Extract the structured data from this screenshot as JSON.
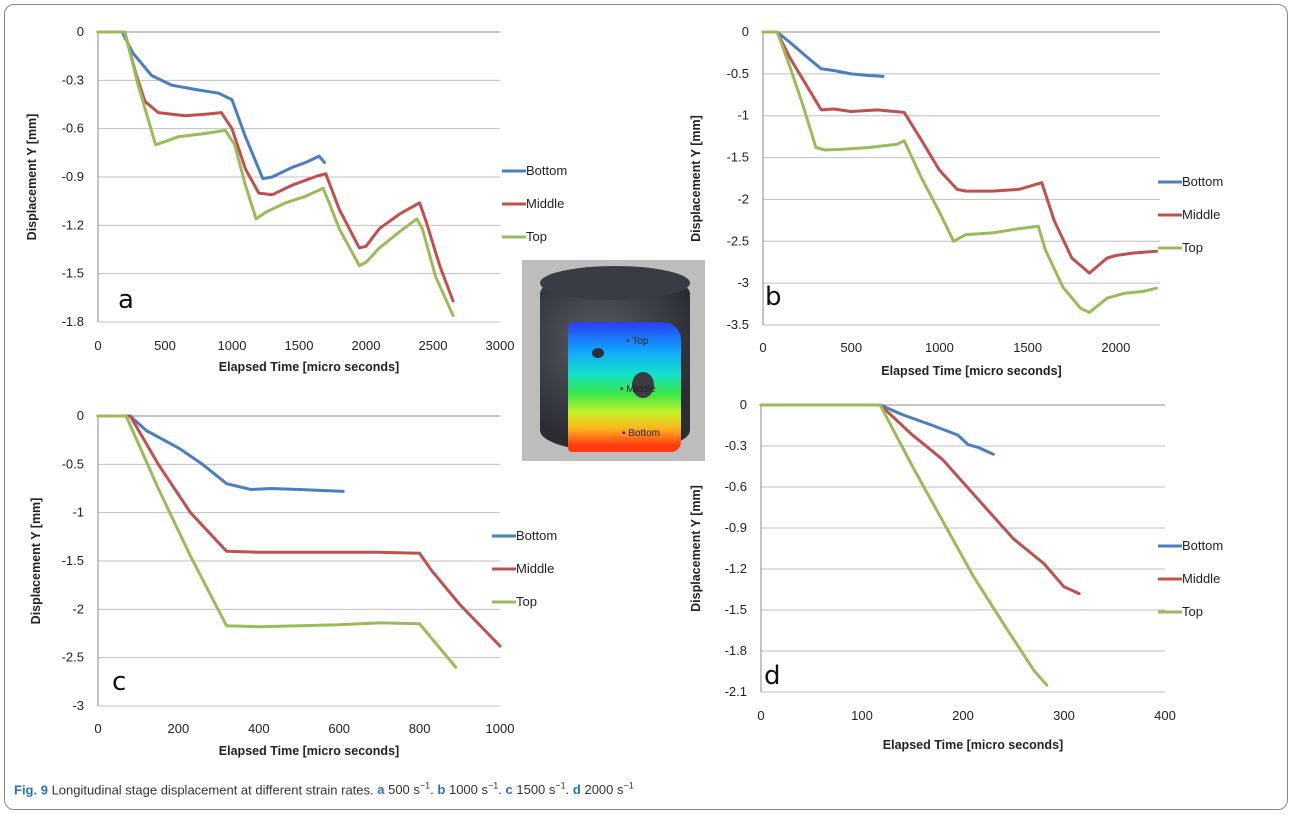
{
  "legend_labels": [
    "Bottom",
    "Middle",
    "Top"
  ],
  "colors": {
    "Bottom": "#4a7ec1",
    "Middle": "#c0504d",
    "Top": "#9bbb59"
  },
  "specimen_labels": {
    "top": "Top",
    "middle": "Middle",
    "bottom": "Bottom"
  },
  "caption": {
    "fig": "Fig. 9",
    "text": " Longitudinal stage displacement at different strain rates. ",
    "parts": [
      {
        "letter": "a",
        "rate": " 500 s",
        "sep": ". "
      },
      {
        "letter": "b",
        "rate": " 1000 s",
        "sep": ". "
      },
      {
        "letter": "c",
        "rate": " 1500 s",
        "sep": ". "
      },
      {
        "letter": "d",
        "rate": " 2000 s",
        "sep": ""
      }
    ],
    "exponent": "−1"
  },
  "chart_data": [
    {
      "type": "line",
      "panel": "a",
      "xlabel": "Elapsed Time [micro seconds]",
      "ylabel": "Displacement  Y [mm]",
      "xlim": [
        0,
        3000
      ],
      "ylim": [
        -1.8,
        0
      ],
      "xticks": [
        0,
        500,
        1000,
        1500,
        2000,
        2500,
        3000
      ],
      "yticks": [
        0,
        -0.3,
        -0.6,
        -0.9,
        -1.2,
        -1.5,
        -1.8
      ],
      "ytick_labels": [
        "0",
        "-0.3",
        "-0.6",
        "-0.9",
        "-1.2",
        "-1.5",
        "-1.8"
      ],
      "series": [
        {
          "name": "Bottom",
          "x": [
            0,
            180,
            260,
            400,
            550,
            750,
            900,
            1000,
            1100,
            1230,
            1300,
            1450,
            1550,
            1650,
            1690
          ],
          "y": [
            0,
            0,
            -0.13,
            -0.27,
            -0.33,
            -0.36,
            -0.38,
            -0.42,
            -0.65,
            -0.91,
            -0.9,
            -0.84,
            -0.81,
            -0.77,
            -0.81
          ]
        },
        {
          "name": "Middle",
          "x": [
            0,
            200,
            280,
            350,
            450,
            650,
            800,
            920,
            1000,
            1100,
            1200,
            1300,
            1450,
            1550,
            1650,
            1700,
            1800,
            1950,
            2000,
            2100,
            2250,
            2400,
            2450,
            2550,
            2650
          ],
          "y": [
            0,
            0,
            -0.25,
            -0.43,
            -0.5,
            -0.52,
            -0.51,
            -0.5,
            -0.6,
            -0.85,
            -1.0,
            -1.01,
            -0.95,
            -0.92,
            -0.89,
            -0.88,
            -1.1,
            -1.34,
            -1.33,
            -1.22,
            -1.13,
            -1.06,
            -1.18,
            -1.45,
            -1.67
          ]
        },
        {
          "name": "Top",
          "x": [
            0,
            200,
            300,
            430,
            500,
            600,
            800,
            950,
            1020,
            1100,
            1180,
            1250,
            1400,
            1550,
            1680,
            1720,
            1800,
            1950,
            2000,
            2100,
            2250,
            2380,
            2420,
            2520,
            2650
          ],
          "y": [
            0,
            0,
            -0.33,
            -0.7,
            -0.68,
            -0.65,
            -0.63,
            -0.61,
            -0.7,
            -0.95,
            -1.16,
            -1.12,
            -1.06,
            -1.02,
            -0.97,
            -1.05,
            -1.22,
            -1.45,
            -1.43,
            -1.34,
            -1.24,
            -1.16,
            -1.22,
            -1.52,
            -1.76
          ]
        }
      ]
    },
    {
      "type": "line",
      "panel": "b",
      "xlabel": "Elapsed Time [micro seconds]",
      "ylabel": "Displacement  Y [mm]",
      "xlim": [
        0,
        2250
      ],
      "ylim": [
        -3.5,
        0
      ],
      "xticks": [
        0,
        500,
        1000,
        1500,
        2000
      ],
      "yticks": [
        0,
        -0.5,
        -1,
        -1.5,
        -2,
        -2.5,
        -3,
        -3.5
      ],
      "ytick_labels": [
        "0",
        "-0.5",
        "-1",
        "-1.5",
        "-2",
        "-2.5",
        "-3",
        "-3.5"
      ],
      "series": [
        {
          "name": "Bottom",
          "x": [
            0,
            80,
            150,
            250,
            330,
            400,
            500,
            600,
            680
          ],
          "y": [
            0,
            0,
            -0.12,
            -0.3,
            -0.44,
            -0.46,
            -0.5,
            -0.52,
            -0.53
          ]
        },
        {
          "name": "Middle",
          "x": [
            0,
            80,
            150,
            250,
            330,
            400,
            500,
            650,
            800,
            900,
            1000,
            1100,
            1150,
            1300,
            1450,
            1580,
            1650,
            1750,
            1850,
            1950,
            2000,
            2100,
            2230
          ],
          "y": [
            0,
            0,
            -0.3,
            -0.65,
            -0.93,
            -0.92,
            -0.95,
            -0.93,
            -0.96,
            -1.3,
            -1.65,
            -1.88,
            -1.9,
            -1.9,
            -1.88,
            -1.8,
            -2.25,
            -2.7,
            -2.88,
            -2.7,
            -2.67,
            -2.64,
            -2.62
          ]
        },
        {
          "name": "Top",
          "x": [
            0,
            80,
            150,
            230,
            300,
            350,
            450,
            600,
            760,
            800,
            900,
            1000,
            1080,
            1150,
            1300,
            1450,
            1560,
            1600,
            1700,
            1800,
            1850,
            1950,
            2050,
            2150,
            2230
          ],
          "y": [
            0,
            0,
            -0.4,
            -0.9,
            -1.38,
            -1.41,
            -1.4,
            -1.38,
            -1.34,
            -1.3,
            -1.75,
            -2.15,
            -2.5,
            -2.42,
            -2.4,
            -2.35,
            -2.32,
            -2.6,
            -3.05,
            -3.3,
            -3.35,
            -3.18,
            -3.12,
            -3.1,
            -3.06
          ]
        }
      ]
    },
    {
      "type": "line",
      "panel": "c",
      "xlabel": "Elapsed Time [micro seconds]",
      "ylabel": "Displacement  Y [mm]",
      "xlim": [
        0,
        1000
      ],
      "ylim": [
        -3,
        0
      ],
      "xticks": [
        0,
        200,
        400,
        600,
        800,
        1000
      ],
      "yticks": [
        0,
        -0.5,
        -1,
        -1.5,
        -2,
        -2.5,
        -3
      ],
      "ytick_labels": [
        "0",
        "-0.5",
        "-1",
        "-1.5",
        "-2",
        "-2.5",
        "-3"
      ],
      "series": [
        {
          "name": "Bottom",
          "x": [
            0,
            80,
            120,
            200,
            260,
            320,
            380,
            430,
            500,
            610
          ],
          "y": [
            0,
            0,
            -0.15,
            -0.33,
            -0.5,
            -0.7,
            -0.76,
            -0.75,
            -0.76,
            -0.78
          ]
        },
        {
          "name": "Middle",
          "x": [
            0,
            80,
            150,
            230,
            320,
            400,
            500,
            600,
            700,
            800,
            830,
            900,
            1000
          ],
          "y": [
            0,
            0,
            -0.5,
            -1.0,
            -1.4,
            -1.41,
            -1.41,
            -1.41,
            -1.41,
            -1.42,
            -1.6,
            -1.95,
            -2.38
          ]
        },
        {
          "name": "Top",
          "x": [
            0,
            70,
            150,
            230,
            320,
            400,
            500,
            600,
            700,
            800,
            820,
            860,
            890
          ],
          "y": [
            0,
            0,
            -0.75,
            -1.45,
            -2.17,
            -2.18,
            -2.17,
            -2.16,
            -2.14,
            -2.15,
            -2.25,
            -2.45,
            -2.6
          ]
        }
      ]
    },
    {
      "type": "line",
      "panel": "d",
      "xlabel": "Elapsed Time [micro seconds]",
      "ylabel": "Displacement  Y [mm]",
      "xlim": [
        0,
        400
      ],
      "ylim": [
        -2.1,
        0
      ],
      "xticks": [
        0,
        100,
        200,
        300,
        400
      ],
      "yticks": [
        0,
        -0.3,
        -0.6,
        -0.9,
        -1.2,
        -1.5,
        -1.8,
        -2.1
      ],
      "ytick_labels": [
        "0",
        "-0.3",
        "-0.6",
        "-0.9",
        "-1.2",
        "-1.5",
        "-1.8",
        "-2.1"
      ],
      "series": [
        {
          "name": "Bottom",
          "x": [
            0,
            118,
            140,
            170,
            195,
            205,
            215,
            230
          ],
          "y": [
            0,
            0,
            -0.07,
            -0.15,
            -0.22,
            -0.29,
            -0.31,
            -0.36
          ]
        },
        {
          "name": "Middle",
          "x": [
            0,
            118,
            150,
            180,
            210,
            250,
            280,
            300,
            315
          ],
          "y": [
            0,
            0,
            -0.22,
            -0.4,
            -0.65,
            -0.98,
            -1.16,
            -1.33,
            -1.38
          ]
        },
        {
          "name": "Top",
          "x": [
            0,
            118,
            150,
            180,
            210,
            240,
            270,
            283
          ],
          "y": [
            0,
            0,
            -0.45,
            -0.85,
            -1.25,
            -1.6,
            -1.94,
            -2.05
          ]
        }
      ]
    }
  ]
}
